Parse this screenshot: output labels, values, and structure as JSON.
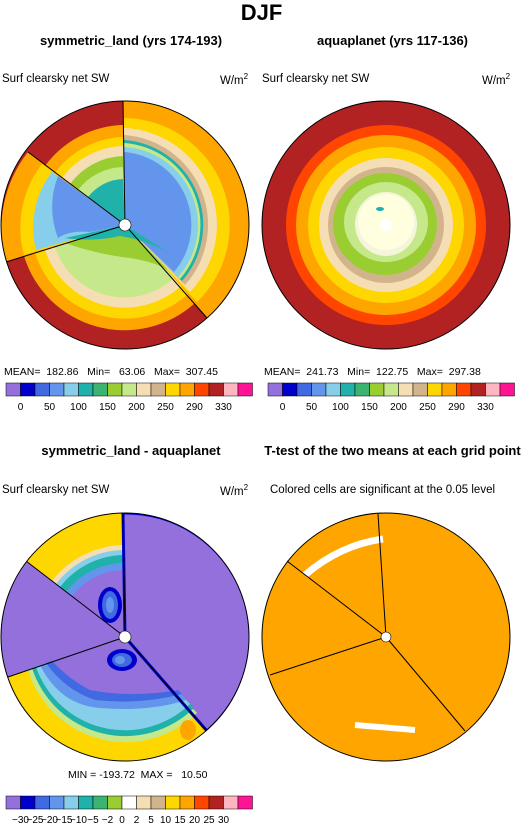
{
  "figure": {
    "title": "DJF",
    "field_label": "Surf clearsky net SW",
    "units_base": "W/m",
    "units_exp": "2"
  },
  "panels": {
    "p1": {
      "title": "symmetric_land (yrs 174-193)",
      "stats": "MEAN=  182.86   Min=   63.06   Max=  307.45"
    },
    "p2": {
      "title": "aquaplanet (yrs 117-136)",
      "stats": "MEAN=  241.73   Min=  122.75   Max=  297.38"
    },
    "p3": {
      "title": "symmetric_land - aquaplanet",
      "stats": "MIN = -193.72  MAX =   10.50"
    },
    "p4": {
      "title": "T-test of the two means at each grid point",
      "subtitle": "Colored cells are significant at the 0.05 level"
    }
  },
  "chart_data": [
    {
      "type": "heatmap",
      "projection": "polar",
      "title": "symmetric_land (yrs 174-193)",
      "field": "Surf clearsky net SW",
      "units": "W/m2",
      "mean": 182.86,
      "min": 63.06,
      "max": 307.45,
      "colorbar_levels": [
        0,
        50,
        100,
        150,
        200,
        250,
        290,
        330
      ],
      "colors": [
        "#9370db",
        "#0000cd",
        "#4169e1",
        "#6495ed",
        "#87ceeb",
        "#20b2aa",
        "#3cb371",
        "#9acd32",
        "#c5e88a",
        "#f5deb3",
        "#d2b48c",
        "#ffd700",
        "#ffa500",
        "#ff4500",
        "#b22222",
        "#ffb6c1",
        "#ff1493"
      ]
    },
    {
      "type": "heatmap",
      "projection": "polar",
      "title": "aquaplanet (yrs 117-136)",
      "field": "Surf clearsky net SW",
      "units": "W/m2",
      "mean": 241.73,
      "min": 122.75,
      "max": 297.38,
      "colorbar_levels": [
        0,
        50,
        100,
        150,
        200,
        250,
        290,
        330
      ]
    },
    {
      "type": "heatmap",
      "projection": "polar",
      "title": "symmetric_land - aquaplanet",
      "field": "Surf clearsky net SW",
      "units": "W/m2",
      "min": -193.72,
      "max": 10.5,
      "colorbar_levels": [
        "-30",
        "-25",
        "-20",
        "-15",
        "-10",
        "-5",
        "-2",
        "0",
        "2",
        "5",
        "10",
        "15",
        "20",
        "25",
        "30"
      ],
      "colors": [
        "#9370db",
        "#0000cd",
        "#4169e1",
        "#6495ed",
        "#87ceeb",
        "#20b2aa",
        "#3cb371",
        "#9acd32",
        "#ffffff",
        "#f5deb3",
        "#d2b48c",
        "#ffd700",
        "#ffa500",
        "#ff4500",
        "#b22222",
        "#ffb6c1",
        "#ff1493"
      ]
    },
    {
      "type": "heatmap",
      "projection": "polar",
      "title": "T-test of the two means at each grid point",
      "note": "Colored cells are significant at the 0.05 level",
      "colors": [
        "#ffa500"
      ]
    }
  ]
}
